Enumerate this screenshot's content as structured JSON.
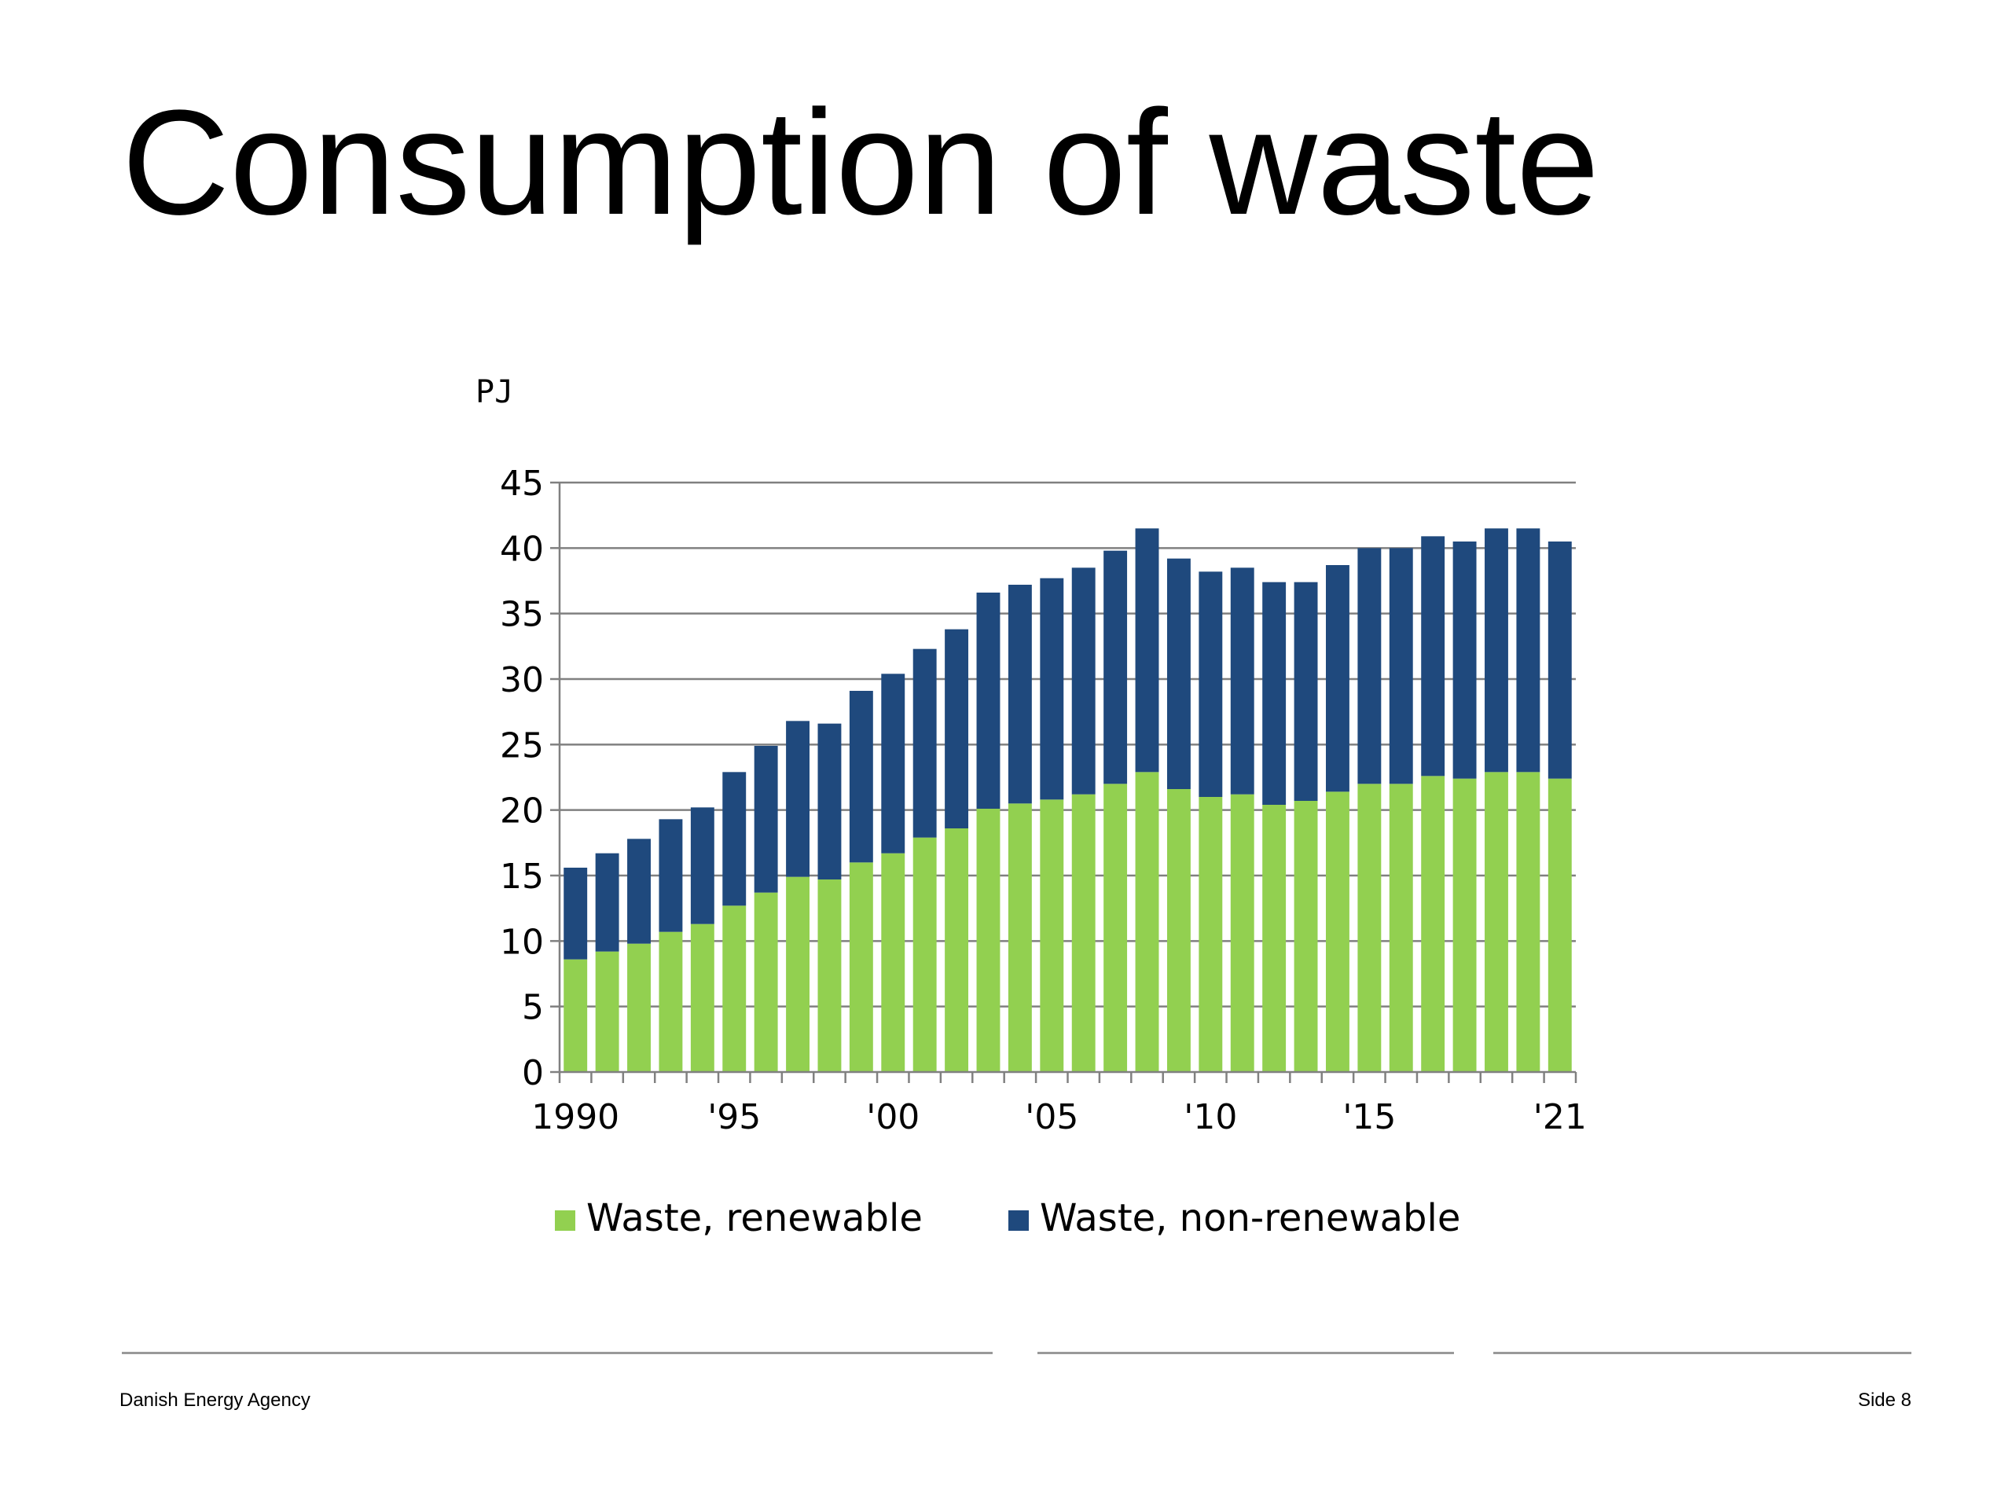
{
  "slide": {
    "title": "Consumption of waste"
  },
  "footer": {
    "organization": "Danish Energy Agency",
    "page_label": "Side 8"
  },
  "colors": {
    "renewable": "#92D050",
    "non_renewable": "#1F497D",
    "gridline": "#808080"
  },
  "chart_data": {
    "type": "bar",
    "stacked": true,
    "title": "",
    "xlabel": "",
    "ylabel": "PJ",
    "ylim": [
      0,
      45
    ],
    "yticks": [
      0,
      5,
      10,
      15,
      20,
      25,
      30,
      35,
      40,
      45
    ],
    "grid": true,
    "legend_position": "bottom",
    "categories": [
      "1990",
      "1991",
      "1992",
      "1993",
      "1994",
      "1995",
      "1996",
      "1997",
      "1998",
      "1999",
      "2000",
      "2001",
      "2002",
      "2003",
      "2004",
      "2005",
      "2006",
      "2007",
      "2008",
      "2009",
      "2010",
      "2011",
      "2012",
      "2013",
      "2014",
      "2015",
      "2016",
      "2017",
      "2018",
      "2019",
      "2020",
      "2021"
    ],
    "tick_labels": [
      "1990",
      "'95",
      "'00",
      "'05",
      "'10",
      "'15",
      "'21"
    ],
    "tick_label_categories": [
      "1990",
      "1995",
      "2000",
      "2005",
      "2010",
      "2015",
      "2021"
    ],
    "series": [
      {
        "name": "Waste, renewable",
        "color": "#92D050",
        "values": [
          8.6,
          9.2,
          9.8,
          10.7,
          11.3,
          12.7,
          13.7,
          14.9,
          14.7,
          16.0,
          16.7,
          17.9,
          18.6,
          20.1,
          20.5,
          20.8,
          21.2,
          22.0,
          22.9,
          21.6,
          21.0,
          21.2,
          20.4,
          20.7,
          21.4,
          22.0,
          22.0,
          22.6,
          22.4,
          22.9,
          22.9,
          22.4
        ]
      },
      {
        "name": "Waste, non-renewable",
        "color": "#1F497D",
        "values": [
          7.0,
          7.5,
          8.0,
          8.6,
          8.9,
          10.2,
          11.2,
          11.9,
          11.9,
          13.1,
          13.7,
          14.4,
          15.2,
          16.5,
          16.7,
          16.9,
          17.3,
          17.8,
          18.6,
          17.6,
          17.2,
          17.3,
          17.0,
          16.7,
          17.3,
          18.0,
          18.0,
          18.3,
          18.1,
          18.6,
          18.6,
          18.1
        ]
      }
    ]
  }
}
